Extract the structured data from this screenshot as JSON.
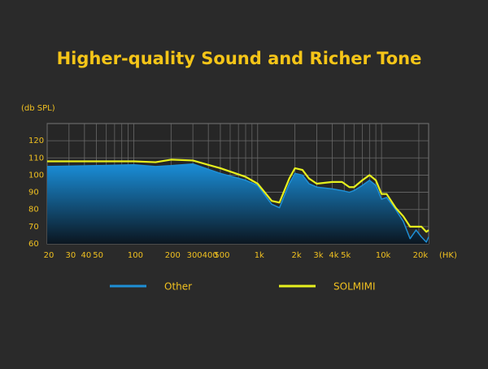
{
  "chart_data": {
    "type": "line",
    "title": "Higher-quality Sound and Richer Tone",
    "ylabel": "(db SPL)",
    "xlabel": "(HK)",
    "xscale": "log",
    "grid": true,
    "legend": "bottom",
    "xlim": [
      20,
      24000
    ],
    "ylim": [
      60,
      130
    ],
    "yticks": [
      60,
      70,
      80,
      90,
      100,
      110,
      120
    ],
    "xticks": [
      20,
      30,
      40,
      50,
      100,
      200,
      300,
      400,
      500,
      {
        "value": 1000,
        "label": "1k"
      },
      {
        "value": 2000,
        "label": "2k"
      },
      {
        "value": 3000,
        "label": "3k"
      },
      {
        "value": 4000,
        "label": "4k"
      },
      {
        "value": 5000,
        "label": "5k"
      },
      {
        "value": 10000,
        "label": "10k"
      },
      {
        "value": 20000,
        "label": "20k"
      }
    ],
    "x_minor_ticks": [
      60,
      70,
      80,
      90,
      600,
      700,
      800,
      900,
      6000,
      7000,
      8000,
      9000
    ],
    "x": [
      20,
      50,
      100,
      150,
      200,
      300,
      500,
      800,
      1000,
      1300,
      1500,
      1800,
      2000,
      2300,
      2600,
      3000,
      4000,
      4800,
      5500,
      6000,
      7000,
      8000,
      9000,
      10000,
      11000,
      13000,
      15000,
      17000,
      19000,
      21000,
      23000,
      24000
    ],
    "series": [
      {
        "name": "Other",
        "color": "#1e8fd6",
        "values": [
          105,
          105.5,
          106,
          105,
          105.5,
          106.5,
          101,
          97,
          94,
          83,
          81,
          95,
          101,
          100,
          95,
          93,
          92,
          91,
          90,
          91,
          94,
          97,
          94,
          86,
          87,
          80,
          73,
          63,
          68,
          64,
          61,
          64
        ]
      },
      {
        "name": "SOLMIMI",
        "color": "#e6f01e",
        "values": [
          108,
          108,
          108,
          107.5,
          109,
          108.5,
          104,
          99,
          95,
          85,
          84,
          98,
          104,
          103,
          98,
          95,
          96,
          96,
          93,
          93,
          97,
          100,
          97,
          89,
          89,
          81,
          76,
          70,
          70,
          70,
          67,
          68
        ]
      }
    ]
  }
}
